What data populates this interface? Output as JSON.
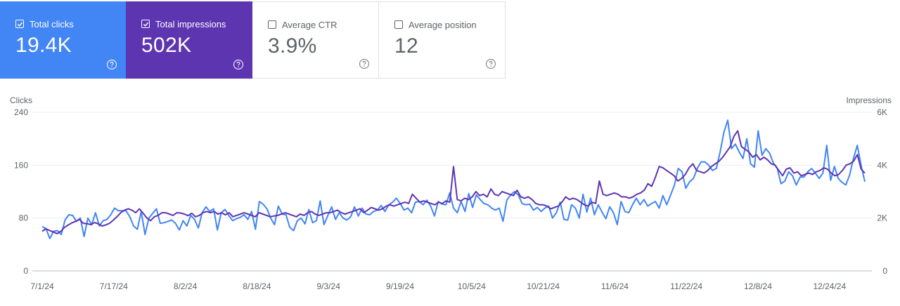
{
  "cards": [
    {
      "label": "Total clicks",
      "value": "19.4K",
      "checked": true
    },
    {
      "label": "Total impressions",
      "value": "502K",
      "checked": true
    },
    {
      "label": "Average CTR",
      "value": "3.9%",
      "checked": false
    },
    {
      "label": "Average position",
      "value": "12",
      "checked": false
    }
  ],
  "chart_data": {
    "type": "line",
    "y_left_label": "Clicks",
    "y_right_label": "Impressions",
    "y_left_ticks": [
      "0",
      "80",
      "160",
      "240"
    ],
    "y_left_range": [
      0,
      240
    ],
    "y_right_ticks": [
      "0",
      "2K",
      "4K",
      "6K"
    ],
    "y_right_range": [
      0,
      6000
    ],
    "x_ticks": [
      "7/1/24",
      "7/17/24",
      "8/2/24",
      "8/18/24",
      "9/3/24",
      "9/19/24",
      "10/5/24",
      "10/21/24",
      "11/6/24",
      "11/22/24",
      "12/8/24",
      "12/24/24"
    ],
    "grid": true,
    "colors": {
      "clicks": "#4285f4",
      "impressions": "#5e35b1"
    },
    "series": [
      {
        "name": "Clicks",
        "axis": "left",
        "values": [
          67,
          64,
          49,
          60,
          61,
          55,
          77,
          85,
          84,
          75,
          80,
          52,
          80,
          70,
          88,
          68,
          76,
          78,
          85,
          95,
          91,
          91,
          91,
          82,
          68,
          63,
          90,
          55,
          80,
          87,
          94,
          72,
          73,
          75,
          77,
          72,
          62,
          76,
          68,
          84,
          78,
          65,
          88,
          97,
          90,
          94,
          62,
          88,
          93,
          84,
          76,
          79,
          81,
          85,
          78,
          90,
          63,
          105,
          101,
          94,
          80,
          70,
          98,
          86,
          85,
          66,
          61,
          76,
          80,
          71,
          93,
          73,
          76,
          106,
          70,
          84,
          97,
          78,
          88,
          80,
          77,
          82,
          97,
          83,
          95,
          86,
          85,
          90,
          92,
          99,
          90,
          100,
          104,
          110,
          102,
          92,
          95,
          88,
          104,
          105,
          100,
          107,
          98,
          83,
          105,
          101,
          100,
          118,
          95,
          88,
          105,
          90,
          117,
          96,
          115,
          108,
          102,
          100,
          95,
          92,
          95,
          75,
          107,
          115,
          120,
          115,
          102,
          100,
          101,
          92,
          96,
          90,
          95,
          98,
          80,
          88,
          104,
          78,
          77,
          100,
          95,
          80,
          116,
          89,
          110,
          85,
          100,
          89,
          79,
          97,
          88,
          70,
          105,
          90,
          88,
          100,
          110,
          100,
          108,
          98,
          102,
          105,
          95,
          114,
          100,
          115,
          130,
          155,
          150,
          125,
          135,
          140,
          155,
          165,
          165,
          160,
          152,
          155,
          180,
          210,
          228,
          185,
          192,
          180,
          170,
          200,
          162,
          157,
          212,
          175,
          185,
          178,
          163,
          155,
          132,
          136,
          150,
          144,
          130,
          142,
          142,
          150,
          155,
          148,
          140,
          148,
          190,
          137,
          158,
          140,
          134,
          130,
          145,
          170,
          190,
          160,
          135
        ]
      },
      {
        "name": "Impressions",
        "axis": "right",
        "values": [
          1500,
          1590,
          1530,
          1470,
          1410,
          1500,
          1650,
          1740,
          1820,
          1880,
          1950,
          1800,
          1790,
          1750,
          1830,
          1780,
          1700,
          1740,
          1800,
          1920,
          2050,
          2200,
          2300,
          2350,
          2300,
          2200,
          2350,
          2180,
          2000,
          1900,
          2050,
          2100,
          2200,
          2200,
          2150,
          2100,
          2200,
          2190,
          2150,
          2090,
          2180,
          2050,
          2100,
          2200,
          2250,
          2200,
          2250,
          2150,
          2200,
          2120,
          2200,
          2050,
          2100,
          2150,
          2200,
          2150,
          2100,
          2050,
          2200,
          2150,
          2100,
          2050,
          2080,
          2100,
          2150,
          2200,
          2150,
          2100,
          2050,
          2150,
          2100,
          2200,
          2250,
          2150,
          2100,
          2150,
          2200,
          2200,
          2250,
          2300,
          2200,
          2150,
          2200,
          2250,
          2300,
          2350,
          2200,
          2300,
          2400,
          2350,
          2300,
          2350,
          2450,
          2500,
          2450,
          2500,
          2550,
          2600,
          2550,
          2900,
          2750,
          2600,
          2650,
          2600,
          2550,
          2500,
          2600,
          2550,
          2650,
          2600,
          3950,
          2700,
          2650,
          2750,
          2700,
          2800,
          3000,
          2850,
          2900,
          2800,
          3100,
          2900,
          2850,
          3000,
          2950,
          2900,
          2850,
          3050,
          2800,
          2750,
          2800,
          2700,
          2550,
          2500,
          2500,
          2450,
          2350,
          2400,
          2450,
          2600,
          2800,
          2700,
          2750,
          2700,
          2600,
          2500,
          2450,
          2600,
          2550,
          3400,
          2900,
          2850,
          2900,
          2950,
          2900,
          2800,
          2800,
          2750,
          2800,
          2900,
          2950,
          3050,
          3300,
          3200,
          3550,
          3950,
          3900,
          3800,
          3700,
          3600,
          3400,
          3500,
          3650,
          3900,
          4050,
          3800,
          3750,
          3700,
          3800,
          3950,
          4050,
          4150,
          4300,
          4500,
          4700,
          5100,
          5300,
          4700,
          4600,
          4500,
          4300,
          4400,
          4200,
          4300,
          4200,
          4050,
          4000,
          3800,
          3600,
          3850,
          3900,
          3700,
          3750,
          3600,
          3650,
          3700,
          3650,
          3750,
          3800,
          3900,
          3850,
          3700,
          3600,
          3650,
          3800,
          4000,
          4050,
          4150,
          4400,
          3850,
          3700
        ]
      }
    ]
  }
}
